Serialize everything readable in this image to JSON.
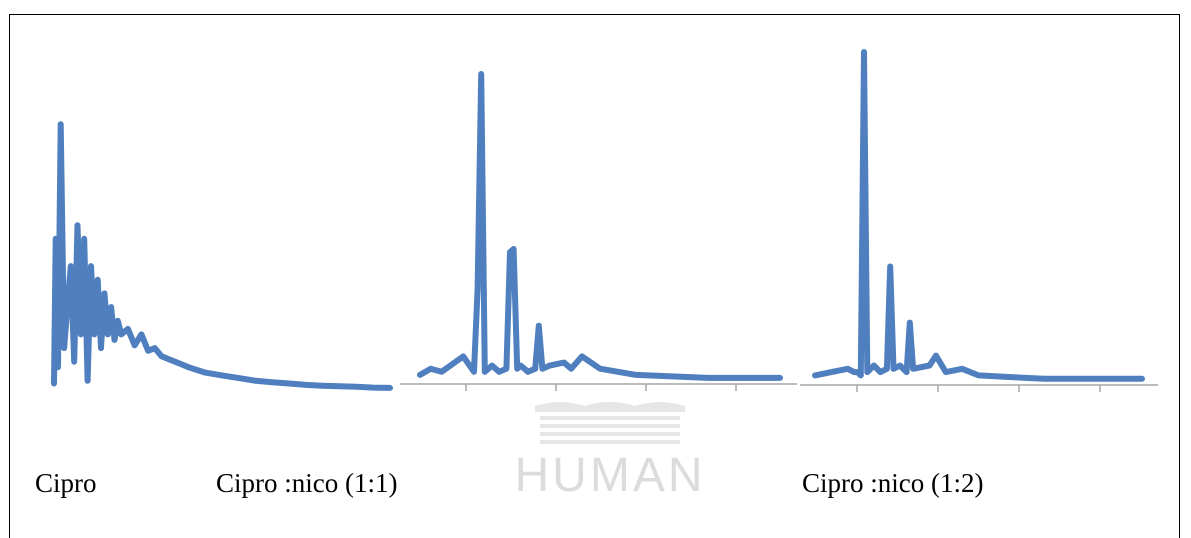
{
  "watermark": {
    "text": "HUMAN"
  },
  "colors": {
    "series": "#4F7FBF",
    "axis": "#a6a6a6",
    "watermark": "#dcdcdc"
  },
  "chart_data": [
    {
      "type": "line",
      "caption": "Cipro",
      "axis_visible": false,
      "x": [
        0,
        0.005,
        0.012,
        0.02,
        0.03,
        0.04,
        0.05,
        0.06,
        0.07,
        0.08,
        0.09,
        0.1,
        0.11,
        0.12,
        0.13,
        0.14,
        0.15,
        0.16,
        0.17,
        0.18,
        0.19,
        0.2,
        0.22,
        0.24,
        0.26,
        0.28,
        0.3,
        0.32,
        0.34,
        0.36,
        0.38,
        0.4,
        0.45,
        0.5,
        0.55,
        0.6,
        0.65,
        0.7,
        0.75,
        0.8,
        0.85,
        0.9,
        0.95,
        1.0
      ],
      "y": [
        0.02,
        0.55,
        0.08,
        0.97,
        0.15,
        0.3,
        0.45,
        0.1,
        0.6,
        0.2,
        0.55,
        0.03,
        0.45,
        0.2,
        0.4,
        0.15,
        0.35,
        0.2,
        0.3,
        0.18,
        0.25,
        0.2,
        0.22,
        0.16,
        0.2,
        0.14,
        0.15,
        0.12,
        0.11,
        0.1,
        0.09,
        0.08,
        0.06,
        0.05,
        0.04,
        0.03,
        0.025,
        0.02,
        0.015,
        0.012,
        0.01,
        0.008,
        0.005,
        0.004
      ]
    },
    {
      "type": "line",
      "caption": "Cipro :nico (1:1)",
      "axis_visible": true,
      "x_ticks": 4,
      "x": [
        0,
        0.03,
        0.06,
        0.12,
        0.15,
        0.16,
        0.17,
        0.18,
        0.19,
        0.2,
        0.22,
        0.24,
        0.25,
        0.26,
        0.27,
        0.28,
        0.3,
        0.32,
        0.33,
        0.34,
        0.36,
        0.4,
        0.42,
        0.45,
        0.5,
        0.6,
        0.7,
        0.8,
        0.9,
        1.0
      ],
      "y": [
        0.02,
        0.04,
        0.03,
        0.08,
        0.03,
        0.3,
        1.0,
        0.03,
        0.04,
        0.05,
        0.03,
        0.04,
        0.42,
        0.43,
        0.04,
        0.05,
        0.03,
        0.04,
        0.18,
        0.04,
        0.05,
        0.06,
        0.04,
        0.08,
        0.04,
        0.02,
        0.015,
        0.01,
        0.01,
        0.01
      ]
    },
    {
      "type": "line",
      "caption": "Cipro :nico (1:2)",
      "axis_visible": true,
      "x_ticks": 4,
      "x": [
        0,
        0.05,
        0.1,
        0.12,
        0.13,
        0.14,
        0.15,
        0.16,
        0.17,
        0.18,
        0.2,
        0.22,
        0.23,
        0.24,
        0.26,
        0.28,
        0.29,
        0.3,
        0.35,
        0.37,
        0.4,
        0.45,
        0.5,
        0.6,
        0.7,
        0.8,
        0.9,
        1.0
      ],
      "y": [
        0.02,
        0.03,
        0.04,
        0.03,
        0.03,
        0.02,
        1.0,
        0.03,
        0.04,
        0.05,
        0.03,
        0.04,
        0.35,
        0.04,
        0.05,
        0.03,
        0.18,
        0.04,
        0.05,
        0.08,
        0.03,
        0.04,
        0.02,
        0.015,
        0.01,
        0.01,
        0.01,
        0.01
      ]
    }
  ]
}
